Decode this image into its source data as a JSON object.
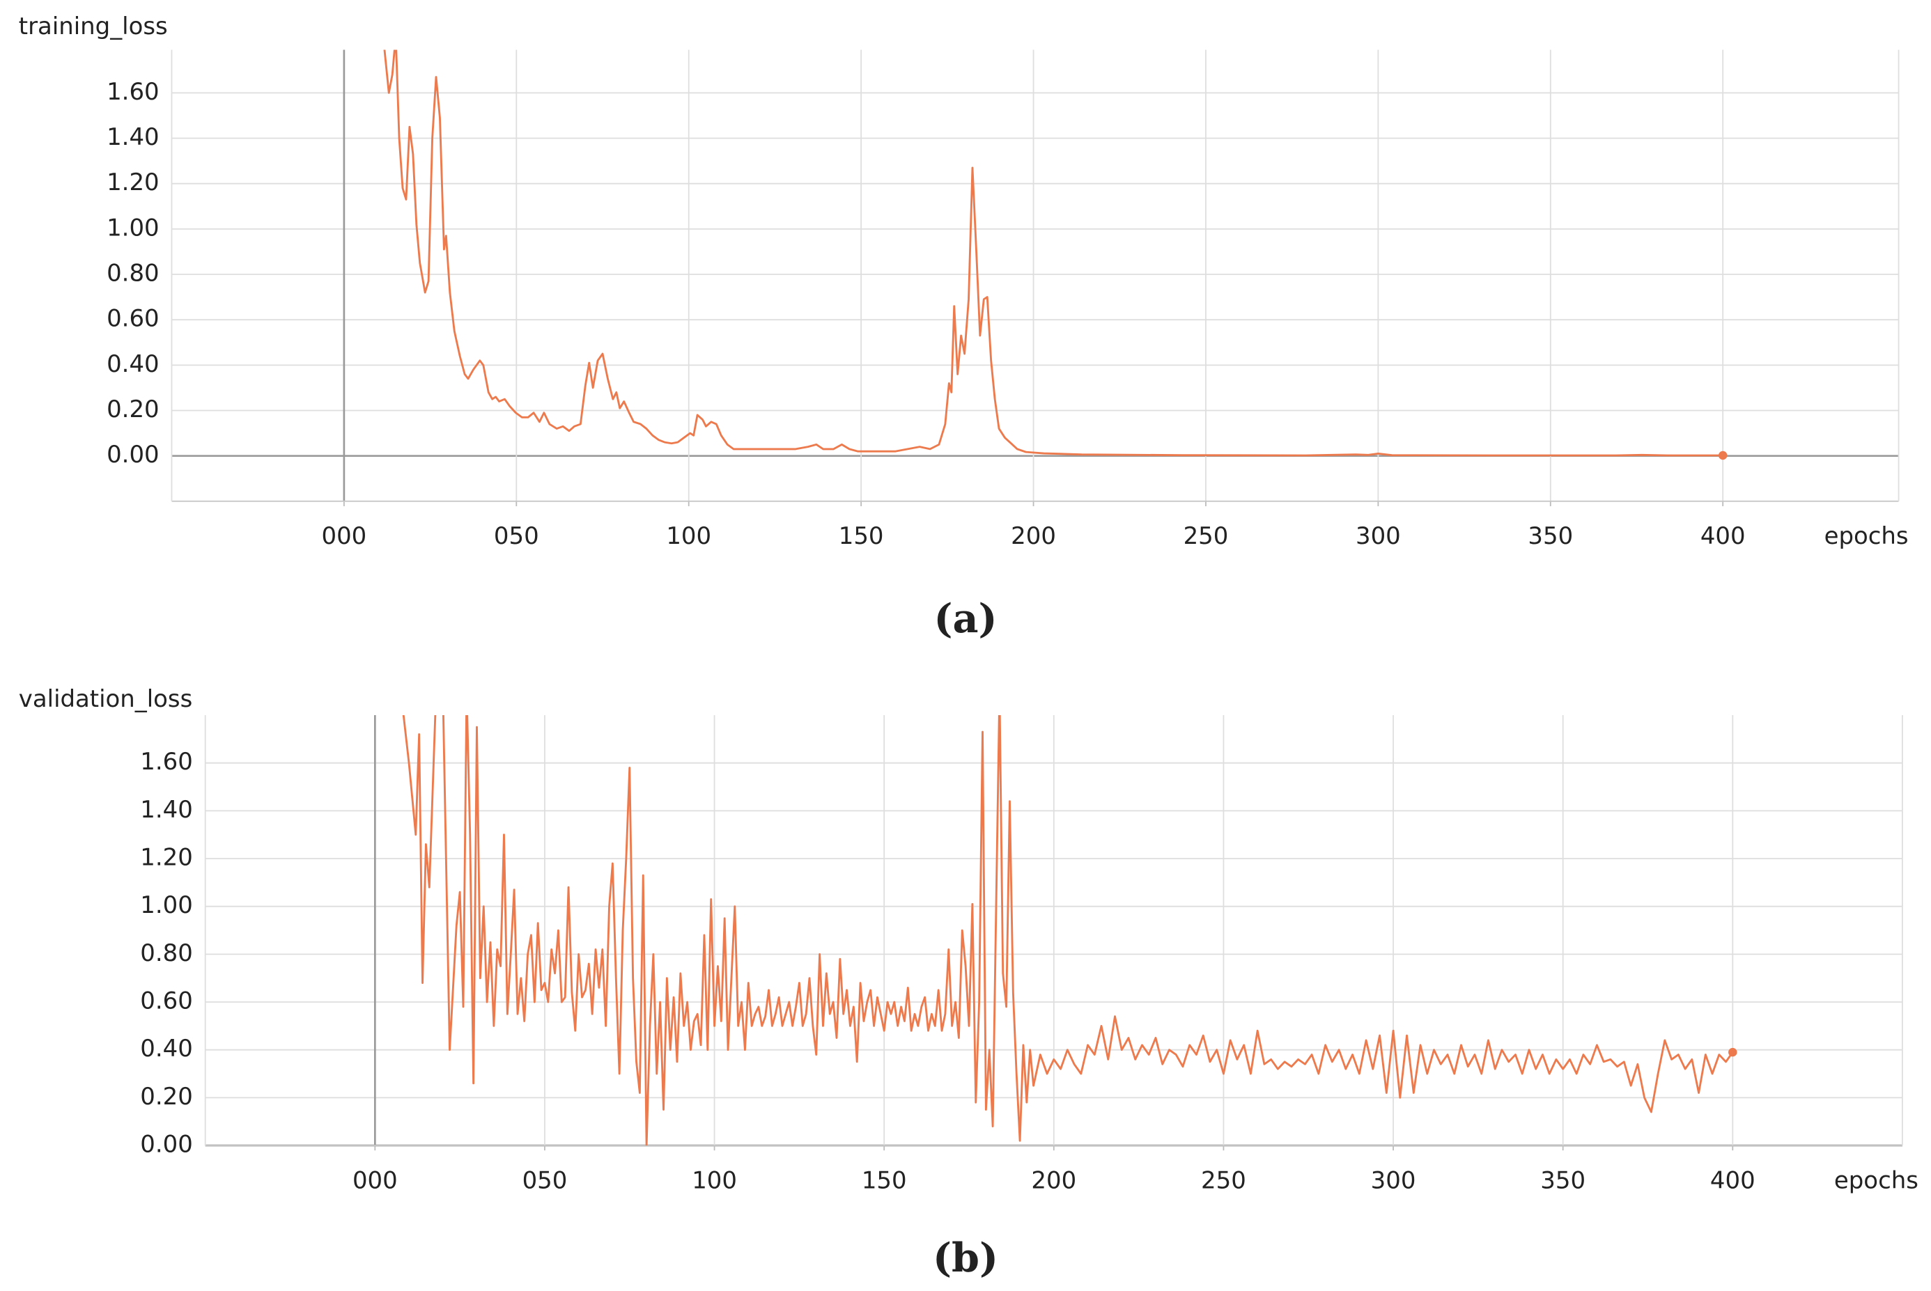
{
  "chart_data": [
    {
      "type": "line",
      "title": "training_loss",
      "xlabel": "epochs",
      "caption": "(a)",
      "xlim": [
        -50,
        451
      ],
      "ylim": [
        -0.2,
        1.79
      ],
      "xticks": [
        {
          "value": 0,
          "label": "000"
        },
        {
          "value": 50,
          "label": "050"
        },
        100,
        150,
        200,
        250,
        300,
        350,
        400
      ],
      "yticks": [
        {
          "value": 0,
          "label": "0.00"
        },
        {
          "value": 0.2,
          "label": "0.20"
        },
        {
          "value": 0.4,
          "label": "0.40"
        },
        {
          "value": 0.6,
          "label": "0.60"
        },
        {
          "value": 0.8,
          "label": "0.80"
        },
        {
          "value": 1,
          "label": "1.00"
        },
        {
          "value": 1.2,
          "label": "1.20"
        },
        {
          "value": 1.4,
          "label": "1.40"
        },
        {
          "value": 1.6,
          "label": "1.60"
        }
      ],
      "grid": true,
      "x": [
        11,
        13,
        14,
        15,
        16,
        17,
        18,
        19,
        20,
        21,
        22,
        23.5,
        24.5,
        25.6,
        26.7,
        27.8,
        29,
        29.6,
        30.7,
        32,
        33.6,
        35,
        36,
        37.5,
        39.4,
        40.4,
        41.9,
        43,
        44,
        45,
        46.6,
        48,
        49.8,
        51.6,
        53.4,
        55,
        56.7,
        58,
        59.6,
        61.7,
        63.5,
        65.3,
        66.8,
        68.6,
        70,
        71.1,
        72.2,
        73.6,
        75,
        76.5,
        78,
        79,
        80,
        81.2,
        82.7,
        84,
        86,
        87.7,
        89.5,
        91.3,
        93,
        95,
        96.8,
        98.6,
        100.4,
        101.4,
        102.5,
        104,
        105,
        106.5,
        108,
        109.4,
        111.2,
        113,
        116.6,
        120,
        124,
        127,
        131,
        134.6,
        137,
        139,
        142,
        144.4,
        146.6,
        149,
        152.7,
        156,
        160,
        163.5,
        167,
        170,
        172.6,
        174.4,
        175.5,
        176.2,
        177,
        178,
        179,
        180,
        181.2,
        182.3,
        183.4,
        184.5,
        185.6,
        186.6,
        187.7,
        188.8,
        190,
        191.7,
        193.5,
        195.3,
        197.8,
        203,
        214,
        243,
        279,
        293.5,
        297,
        300,
        304,
        333,
        369,
        376.5,
        384,
        400
      ],
      "series": [
        {
          "color": "#ec7a4d",
          "values": [
            1.9,
            1.6,
            1.68,
            1.85,
            1.4,
            1.18,
            1.13,
            1.45,
            1.33,
            1.02,
            0.85,
            0.72,
            0.77,
            1.4,
            1.67,
            1.49,
            0.91,
            0.97,
            0.72,
            0.55,
            0.44,
            0.36,
            0.34,
            0.38,
            0.42,
            0.4,
            0.28,
            0.25,
            0.26,
            0.24,
            0.25,
            0.22,
            0.19,
            0.17,
            0.17,
            0.19,
            0.15,
            0.19,
            0.14,
            0.12,
            0.13,
            0.11,
            0.13,
            0.14,
            0.31,
            0.41,
            0.3,
            0.42,
            0.45,
            0.34,
            0.25,
            0.28,
            0.21,
            0.24,
            0.19,
            0.15,
            0.14,
            0.12,
            0.09,
            0.07,
            0.06,
            0.055,
            0.06,
            0.08,
            0.1,
            0.09,
            0.18,
            0.16,
            0.13,
            0.15,
            0.14,
            0.09,
            0.05,
            0.03,
            0.03,
            0.03,
            0.03,
            0.03,
            0.03,
            0.04,
            0.05,
            0.03,
            0.03,
            0.05,
            0.03,
            0.02,
            0.02,
            0.02,
            0.02,
            0.03,
            0.04,
            0.03,
            0.05,
            0.14,
            0.32,
            0.28,
            0.66,
            0.36,
            0.53,
            0.45,
            0.69,
            1.27,
            0.91,
            0.53,
            0.69,
            0.7,
            0.42,
            0.25,
            0.12,
            0.08,
            0.055,
            0.03,
            0.017,
            0.011,
            0.006,
            0.003,
            0.002,
            0.006,
            0.004,
            0.01,
            0.003,
            0.002,
            0.002,
            0.004,
            0.002,
            0.002
          ]
        }
      ]
    },
    {
      "type": "line",
      "title": "validation_loss",
      "xlabel": "epochs",
      "caption": "(b)",
      "xlim": [
        -50,
        450
      ],
      "ylim": [
        0,
        1.8
      ],
      "xticks": [
        {
          "value": 0,
          "label": "000"
        },
        {
          "value": 50,
          "label": "050"
        },
        100,
        150,
        200,
        250,
        300,
        350,
        400
      ],
      "yticks": [
        {
          "value": 0,
          "label": "0.00"
        },
        {
          "value": 0.2,
          "label": "0.20"
        },
        {
          "value": 0.4,
          "label": "0.40"
        },
        {
          "value": 0.6,
          "label": "0.60"
        },
        {
          "value": 0.8,
          "label": "0.80"
        },
        {
          "value": 1,
          "label": "1.00"
        },
        {
          "value": 1.2,
          "label": "1.20"
        },
        {
          "value": 1.4,
          "label": "1.40"
        },
        {
          "value": 1.6,
          "label": "1.60"
        }
      ],
      "grid": true,
      "x": [
        8,
        10,
        12,
        13,
        14,
        15,
        16,
        18,
        20,
        22,
        24,
        25,
        26,
        27,
        28,
        29,
        30,
        31,
        32,
        33,
        34,
        35,
        36,
        37,
        38,
        39,
        40,
        41,
        42,
        43,
        44,
        45,
        46,
        47,
        48,
        49,
        50,
        51,
        52,
        53,
        54,
        55,
        56,
        57,
        58,
        59,
        60,
        61,
        62,
        63,
        64,
        65,
        66,
        67,
        68,
        69,
        70,
        71,
        72,
        73,
        74,
        75,
        76,
        77,
        78,
        79,
        80,
        81,
        82,
        83,
        84,
        85,
        86,
        87,
        88,
        89,
        90,
        91,
        92,
        93,
        94,
        95,
        96,
        97,
        98,
        99,
        100,
        101,
        102,
        103,
        104,
        105,
        106,
        107,
        108,
        109,
        110,
        111,
        112,
        113,
        114,
        115,
        116,
        117,
        118,
        119,
        120,
        121,
        122,
        123,
        124,
        125,
        126,
        127,
        128,
        129,
        130,
        131,
        132,
        133,
        134,
        135,
        136,
        137,
        138,
        139,
        140,
        141,
        142,
        143,
        144,
        145,
        146,
        147,
        148,
        149,
        150,
        151,
        152,
        153,
        154,
        155,
        156,
        157,
        158,
        159,
        160,
        161,
        162,
        163,
        164,
        165,
        166,
        167,
        168,
        169,
        170,
        171,
        172,
        173,
        174,
        175,
        176,
        177,
        178,
        179,
        180,
        181,
        182,
        183,
        184,
        185,
        186,
        187,
        188,
        189,
        190,
        191,
        192,
        193,
        194,
        196,
        198,
        200,
        202,
        204,
        206,
        208,
        210,
        212,
        214,
        216,
        218,
        220,
        222,
        224,
        226,
        228,
        230,
        232,
        234,
        236,
        238,
        240,
        242,
        244,
        246,
        248,
        250,
        252,
        254,
        256,
        258,
        260,
        262,
        264,
        266,
        268,
        270,
        272,
        274,
        276,
        278,
        280,
        282,
        284,
        286,
        288,
        290,
        292,
        294,
        296,
        298,
        300,
        302,
        304,
        306,
        308,
        310,
        312,
        314,
        316,
        318,
        320,
        322,
        324,
        326,
        328,
        330,
        332,
        334,
        336,
        338,
        340,
        342,
        344,
        346,
        348,
        350,
        352,
        354,
        356,
        358,
        360,
        362,
        364,
        366,
        368,
        370,
        372,
        374,
        376,
        378,
        380,
        382,
        384,
        386,
        388,
        390,
        392,
        394,
        396,
        398,
        400
      ],
      "series": [
        {
          "color": "#ec7a4d",
          "values": [
            1.85,
            1.6,
            1.3,
            1.72,
            0.68,
            1.26,
            1.08,
            1.9,
            1.9,
            0.4,
            0.92,
            1.06,
            0.58,
            1.9,
            1.3,
            0.26,
            1.75,
            0.7,
            1.0,
            0.6,
            0.85,
            0.5,
            0.82,
            0.75,
            1.3,
            0.55,
            0.8,
            1.07,
            0.55,
            0.7,
            0.52,
            0.8,
            0.88,
            0.6,
            0.93,
            0.65,
            0.68,
            0.6,
            0.82,
            0.72,
            0.9,
            0.6,
            0.62,
            1.08,
            0.64,
            0.48,
            0.8,
            0.62,
            0.65,
            0.76,
            0.55,
            0.82,
            0.66,
            0.82,
            0.5,
            1.0,
            1.18,
            0.7,
            0.3,
            0.9,
            1.2,
            1.58,
            0.7,
            0.35,
            0.22,
            1.13,
            0.0,
            0.5,
            0.8,
            0.3,
            0.6,
            0.15,
            0.7,
            0.4,
            0.62,
            0.35,
            0.72,
            0.5,
            0.6,
            0.4,
            0.52,
            0.55,
            0.42,
            0.88,
            0.4,
            1.03,
            0.5,
            0.75,
            0.52,
            0.95,
            0.4,
            0.7,
            1.0,
            0.5,
            0.6,
            0.4,
            0.68,
            0.5,
            0.55,
            0.58,
            0.5,
            0.54,
            0.65,
            0.5,
            0.55,
            0.62,
            0.5,
            0.55,
            0.6,
            0.5,
            0.58,
            0.68,
            0.5,
            0.55,
            0.7,
            0.5,
            0.38,
            0.8,
            0.5,
            0.72,
            0.55,
            0.6,
            0.45,
            0.78,
            0.55,
            0.65,
            0.5,
            0.58,
            0.35,
            0.68,
            0.52,
            0.6,
            0.65,
            0.5,
            0.62,
            0.55,
            0.48,
            0.6,
            0.55,
            0.6,
            0.5,
            0.58,
            0.52,
            0.66,
            0.48,
            0.55,
            0.5,
            0.58,
            0.62,
            0.48,
            0.55,
            0.5,
            0.65,
            0.48,
            0.55,
            0.82,
            0.5,
            0.6,
            0.45,
            0.9,
            0.75,
            0.5,
            1.01,
            0.18,
            0.6,
            1.73,
            0.15,
            0.4,
            0.08,
            1.0,
            1.9,
            0.72,
            0.58,
            1.44,
            0.64,
            0.3,
            0.02,
            0.42,
            0.18,
            0.4,
            0.25,
            0.38,
            0.3,
            0.36,
            0.32,
            0.4,
            0.34,
            0.3,
            0.42,
            0.38,
            0.5,
            0.36,
            0.54,
            0.4,
            0.45,
            0.36,
            0.42,
            0.38,
            0.45,
            0.34,
            0.4,
            0.38,
            0.33,
            0.42,
            0.38,
            0.46,
            0.35,
            0.4,
            0.3,
            0.44,
            0.36,
            0.42,
            0.3,
            0.48,
            0.34,
            0.36,
            0.32,
            0.35,
            0.33,
            0.36,
            0.34,
            0.38,
            0.3,
            0.42,
            0.35,
            0.4,
            0.32,
            0.38,
            0.3,
            0.44,
            0.32,
            0.46,
            0.22,
            0.48,
            0.2,
            0.46,
            0.22,
            0.42,
            0.3,
            0.4,
            0.34,
            0.38,
            0.3,
            0.42,
            0.33,
            0.38,
            0.3,
            0.44,
            0.32,
            0.4,
            0.35,
            0.38,
            0.3,
            0.4,
            0.32,
            0.38,
            0.3,
            0.36,
            0.32,
            0.36,
            0.3,
            0.38,
            0.34,
            0.42,
            0.35,
            0.36,
            0.33,
            0.35,
            0.25,
            0.34,
            0.2,
            0.14,
            0.3,
            0.44,
            0.36,
            0.38,
            0.32,
            0.36,
            0.22,
            0.38,
            0.3,
            0.38,
            0.35,
            0.39
          ]
        }
      ]
    }
  ]
}
